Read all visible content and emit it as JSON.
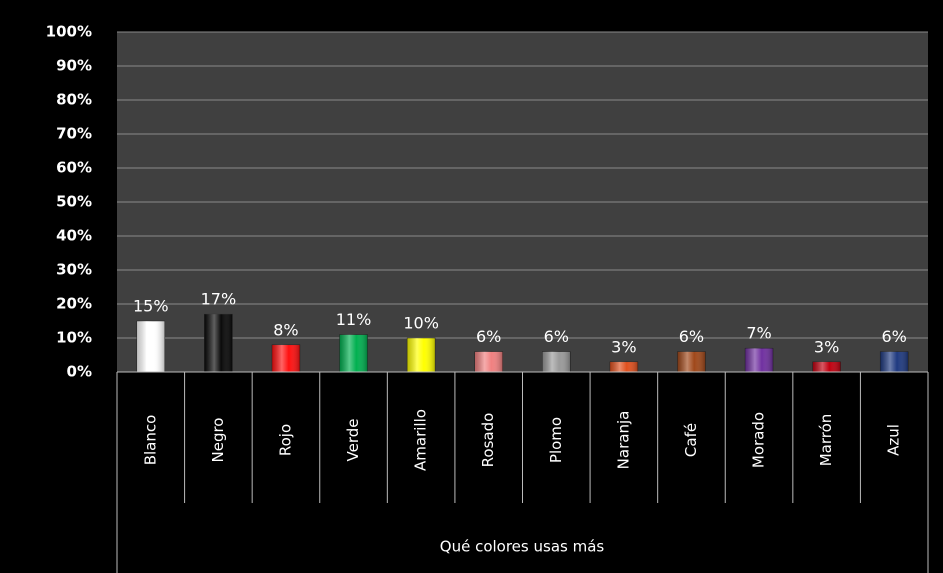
{
  "chart_data": {
    "type": "bar",
    "x_axis_label": "Qué colores usas más",
    "categories": [
      "Blanco",
      "Negro",
      "Rojo",
      "Verde",
      "Amarillo",
      "Rosado",
      "Plomo",
      "Naranja",
      "Café",
      "Morado",
      "Marrón",
      "Azul"
    ],
    "values": [
      15,
      17,
      8,
      11,
      10,
      6,
      6,
      3,
      6,
      7,
      3,
      6
    ],
    "value_labels": [
      "15%",
      "17%",
      "8%",
      "11%",
      "10%",
      "6%",
      "6%",
      "3%",
      "6%",
      "7%",
      "3%",
      "6%"
    ],
    "colors": [
      "#ffffff",
      "#0a0a0a",
      "#ff1010",
      "#00b050",
      "#ffff00",
      "#f08080",
      "#9a9a9a",
      "#e0501e",
      "#a0481a",
      "#7030a0",
      "#c00010",
      "#1f3a80"
    ],
    "ylim": [
      0,
      100
    ],
    "yticks": [
      {
        "value": 0,
        "label": "0%"
      },
      {
        "value": 10,
        "label": "10%"
      },
      {
        "value": 20,
        "label": "20%"
      },
      {
        "value": 30,
        "label": "30%"
      },
      {
        "value": 40,
        "label": "40%"
      },
      {
        "value": 50,
        "label": "50%"
      },
      {
        "value": 60,
        "label": "60%"
      },
      {
        "value": 70,
        "label": "70%"
      },
      {
        "value": 80,
        "label": "80%"
      },
      {
        "value": 90,
        "label": "90%"
      },
      {
        "value": 100,
        "label": "100%"
      }
    ],
    "grid": true
  }
}
